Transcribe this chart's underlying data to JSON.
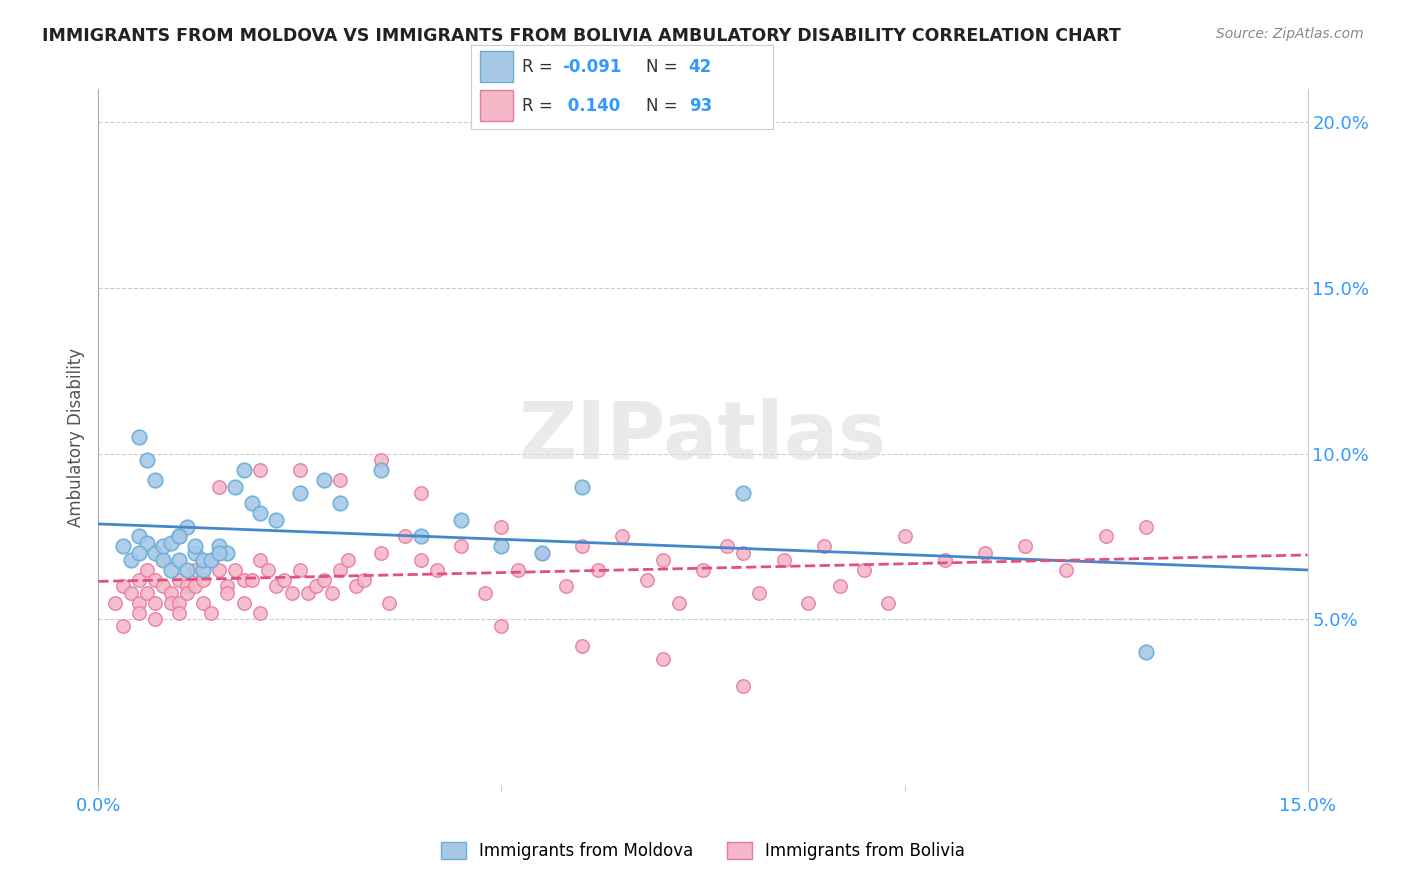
{
  "title": "IMMIGRANTS FROM MOLDOVA VS IMMIGRANTS FROM BOLIVIA AMBULATORY DISABILITY CORRELATION CHART",
  "source": "Source: ZipAtlas.com",
  "ylabel": "Ambulatory Disability",
  "xlim": [
    0.0,
    0.15
  ],
  "ylim": [
    0.0,
    0.21
  ],
  "yticks_right": [
    0.05,
    0.1,
    0.15,
    0.2
  ],
  "ytick_labels_right": [
    "5.0%",
    "10.0%",
    "15.0%",
    "20.0%"
  ],
  "legend_r_moldova": "-0.091",
  "legend_n_moldova": "42",
  "legend_r_bolivia": " 0.140",
  "legend_n_bolivia": "93",
  "moldova_color": "#a8c8e8",
  "moldova_edge_color": "#6aaed6",
  "bolivia_color": "#f4b8c8",
  "bolivia_edge_color": "#e878a0",
  "trendline_moldova_color": "#4488cc",
  "trendline_bolivia_color": "#e05080",
  "background_color": "#ffffff",
  "moldova_x": [
    0.003,
    0.004,
    0.005,
    0.005,
    0.006,
    0.006,
    0.007,
    0.007,
    0.008,
    0.008,
    0.009,
    0.009,
    0.01,
    0.01,
    0.011,
    0.011,
    0.012,
    0.012,
    0.013,
    0.013,
    0.014,
    0.015,
    0.016,
    0.017,
    0.018,
    0.019,
    0.02,
    0.022,
    0.025,
    0.028,
    0.03,
    0.035,
    0.04,
    0.045,
    0.05,
    0.055,
    0.06,
    0.08,
    0.13,
    0.005,
    0.01,
    0.015
  ],
  "moldova_y": [
    0.072,
    0.068,
    0.075,
    0.105,
    0.073,
    0.098,
    0.07,
    0.092,
    0.068,
    0.072,
    0.073,
    0.065,
    0.075,
    0.068,
    0.078,
    0.065,
    0.07,
    0.072,
    0.065,
    0.068,
    0.068,
    0.072,
    0.07,
    0.09,
    0.095,
    0.085,
    0.082,
    0.08,
    0.088,
    0.092,
    0.085,
    0.095,
    0.075,
    0.08,
    0.072,
    0.07,
    0.09,
    0.088,
    0.04,
    0.07,
    0.075,
    0.07
  ],
  "bolivia_x": [
    0.002,
    0.003,
    0.003,
    0.004,
    0.005,
    0.005,
    0.005,
    0.006,
    0.006,
    0.007,
    0.007,
    0.007,
    0.008,
    0.008,
    0.009,
    0.009,
    0.01,
    0.01,
    0.01,
    0.011,
    0.011,
    0.012,
    0.012,
    0.013,
    0.013,
    0.014,
    0.014,
    0.015,
    0.016,
    0.016,
    0.017,
    0.018,
    0.018,
    0.019,
    0.02,
    0.02,
    0.021,
    0.022,
    0.023,
    0.024,
    0.025,
    0.026,
    0.027,
    0.028,
    0.029,
    0.03,
    0.031,
    0.032,
    0.033,
    0.035,
    0.036,
    0.038,
    0.04,
    0.042,
    0.045,
    0.048,
    0.05,
    0.052,
    0.055,
    0.058,
    0.06,
    0.062,
    0.065,
    0.068,
    0.07,
    0.072,
    0.075,
    0.078,
    0.08,
    0.082,
    0.085,
    0.088,
    0.09,
    0.092,
    0.095,
    0.098,
    0.1,
    0.105,
    0.11,
    0.115,
    0.12,
    0.125,
    0.13,
    0.025,
    0.035,
    0.015,
    0.02,
    0.03,
    0.04,
    0.05,
    0.06,
    0.07,
    0.08
  ],
  "bolivia_y": [
    0.055,
    0.06,
    0.048,
    0.058,
    0.062,
    0.055,
    0.052,
    0.065,
    0.058,
    0.062,
    0.055,
    0.05,
    0.068,
    0.06,
    0.058,
    0.055,
    0.062,
    0.055,
    0.052,
    0.06,
    0.058,
    0.065,
    0.06,
    0.062,
    0.055,
    0.068,
    0.052,
    0.065,
    0.06,
    0.058,
    0.065,
    0.062,
    0.055,
    0.062,
    0.068,
    0.052,
    0.065,
    0.06,
    0.062,
    0.058,
    0.065,
    0.058,
    0.06,
    0.062,
    0.058,
    0.065,
    0.068,
    0.06,
    0.062,
    0.07,
    0.055,
    0.075,
    0.068,
    0.065,
    0.072,
    0.058,
    0.078,
    0.065,
    0.07,
    0.06,
    0.072,
    0.065,
    0.075,
    0.062,
    0.068,
    0.055,
    0.065,
    0.072,
    0.07,
    0.058,
    0.068,
    0.055,
    0.072,
    0.06,
    0.065,
    0.055,
    0.075,
    0.068,
    0.07,
    0.072,
    0.065,
    0.075,
    0.078,
    0.095,
    0.098,
    0.09,
    0.095,
    0.092,
    0.088,
    0.048,
    0.042,
    0.038,
    0.03
  ]
}
